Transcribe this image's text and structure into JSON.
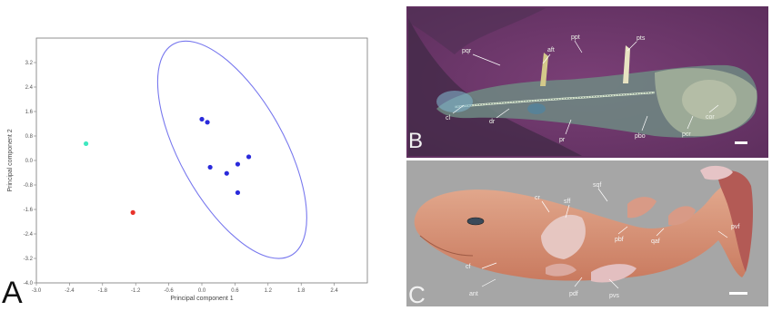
{
  "panels": {
    "a": "A",
    "b": "B",
    "c": "C"
  },
  "chart_data": {
    "type": "scatter",
    "xlabel": "Principal component 1",
    "ylabel": "Principal component 2",
    "xlim": [
      -3.0,
      3.0
    ],
    "ylim": [
      -4.0,
      4.0
    ],
    "xticks": [
      -3.0,
      -2.4,
      -1.8,
      -1.2,
      -0.6,
      0.0,
      0.6,
      1.2,
      1.8,
      2.4
    ],
    "yticks": [
      3.2,
      2.4,
      1.6,
      0.8,
      0.0,
      -0.8,
      -1.6,
      -2.4,
      -3.2,
      -4.0
    ],
    "xtick_labels": [
      "-3.0",
      "-2.4",
      "-1.8",
      "-1.2",
      "-0.6",
      "0.0",
      "0.6",
      "1.2",
      "1.8",
      "2.4"
    ],
    "ytick_labels": [
      "3.2",
      "2.4",
      "1.6",
      "0.8",
      "0.0",
      "-0.8",
      "-1.6",
      "-2.4",
      "-3.2",
      "-4.0"
    ],
    "grid": false,
    "points": [
      {
        "x": 0.0,
        "y": 1.35,
        "color": "#2a2adb"
      },
      {
        "x": 0.1,
        "y": 1.25,
        "color": "#2a2adb"
      },
      {
        "x": 0.85,
        "y": 0.12,
        "color": "#2a2adb"
      },
      {
        "x": 0.65,
        "y": -0.12,
        "color": "#2a2adb"
      },
      {
        "x": 0.15,
        "y": -0.22,
        "color": "#2a2adb"
      },
      {
        "x": 0.45,
        "y": -0.42,
        "color": "#2a2adb"
      },
      {
        "x": 0.65,
        "y": -1.05,
        "color": "#2a2adb"
      },
      {
        "x": -2.1,
        "y": 0.55,
        "color": "#3fe8c0"
      },
      {
        "x": -1.25,
        "y": -1.7,
        "color": "#e8322a"
      }
    ],
    "ellipse": {
      "cx": 0.55,
      "cy": 0.35,
      "rx": 0.95,
      "ry": 3.95,
      "angle_deg": 29,
      "color": "#7777ee"
    }
  },
  "fossil_labels": [
    "pqr",
    "ppt",
    "aft",
    "pts",
    "cl",
    "dr",
    "pr",
    "pbo",
    "pcr",
    "cor"
  ],
  "specimen_labels": [
    "cr",
    "sff",
    "sqf",
    "pbf",
    "cf",
    "qaf",
    "pdf",
    "pvf",
    "ant",
    "pvs"
  ]
}
